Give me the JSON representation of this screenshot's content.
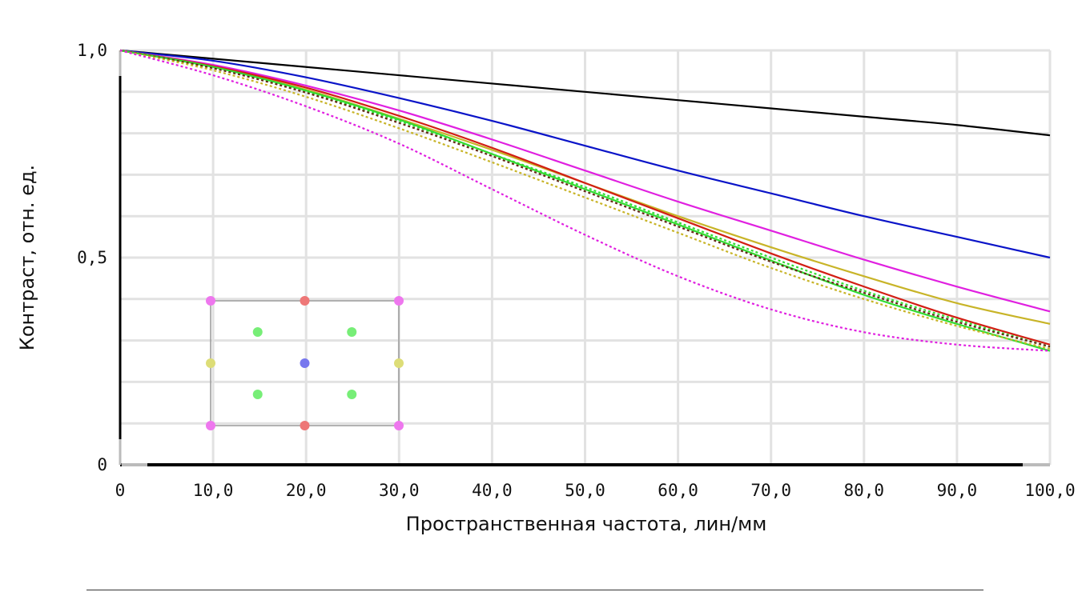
{
  "chart_data": {
    "type": "line",
    "xlabel": "Пространственная частота, лин/мм",
    "ylabel": "Контраст, отн. ед.",
    "xlim": [
      0,
      100
    ],
    "ylim": [
      0,
      1
    ],
    "x_ticks": [
      "0",
      "10,0",
      "20,0",
      "30,0",
      "40,0",
      "50,0",
      "60,0",
      "70,0",
      "80,0",
      "90,0",
      "100,0"
    ],
    "y_ticks": [
      "0",
      "0,5",
      "1,0"
    ],
    "grid": true,
    "x": [
      0,
      10,
      20,
      30,
      40,
      50,
      60,
      70,
      80,
      90,
      100
    ],
    "series": [
      {
        "color": "#000000",
        "style": "solid",
        "values": [
          1.0,
          0.98,
          0.96,
          0.94,
          0.92,
          0.9,
          0.88,
          0.86,
          0.84,
          0.82,
          0.795
        ]
      },
      {
        "color": "#0a14c8",
        "style": "solid",
        "values": [
          1.0,
          0.975,
          0.935,
          0.885,
          0.83,
          0.77,
          0.71,
          0.655,
          0.6,
          0.55,
          0.5
        ]
      },
      {
        "color": "#e020e0",
        "style": "solid",
        "values": [
          1.0,
          0.965,
          0.915,
          0.855,
          0.785,
          0.71,
          0.635,
          0.565,
          0.495,
          0.43,
          0.37
        ]
      },
      {
        "color": "#c8b428",
        "style": "solid",
        "values": [
          1.0,
          0.96,
          0.905,
          0.835,
          0.76,
          0.68,
          0.6,
          0.525,
          0.455,
          0.39,
          0.34
        ]
      },
      {
        "color": "#d21e14",
        "style": "solid",
        "values": [
          1.0,
          0.962,
          0.91,
          0.842,
          0.765,
          0.68,
          0.595,
          0.51,
          0.43,
          0.355,
          0.29
        ]
      },
      {
        "color": "#32dc32",
        "style": "solid",
        "values": [
          1.0,
          0.96,
          0.903,
          0.833,
          0.75,
          0.665,
          0.58,
          0.493,
          0.41,
          0.34,
          0.275
        ]
      },
      {
        "color": "#32dc32",
        "style": "dotted",
        "values": [
          1.0,
          0.958,
          0.9,
          0.83,
          0.75,
          0.67,
          0.585,
          0.5,
          0.42,
          0.35,
          0.285
        ]
      },
      {
        "color": "#642814",
        "style": "dotted",
        "values": [
          1.0,
          0.957,
          0.898,
          0.825,
          0.745,
          0.66,
          0.575,
          0.49,
          0.415,
          0.345,
          0.285
        ]
      },
      {
        "color": "#c8b428",
        "style": "dotted",
        "values": [
          1.0,
          0.952,
          0.888,
          0.812,
          0.73,
          0.645,
          0.56,
          0.475,
          0.4,
          0.335,
          0.28
        ]
      },
      {
        "color": "#e020e0",
        "style": "dotted",
        "values": [
          1.0,
          0.94,
          0.865,
          0.775,
          0.665,
          0.555,
          0.455,
          0.375,
          0.32,
          0.29,
          0.275
        ]
      }
    ],
    "inset": {
      "description_points": [
        {
          "gx": 0,
          "gy": 0,
          "color": "#ee77ee"
        },
        {
          "gx": 0.5,
          "gy": 0,
          "color": "#ee7777"
        },
        {
          "gx": 1,
          "gy": 0,
          "color": "#ee77ee"
        },
        {
          "gx": 0.25,
          "gy": 0.25,
          "color": "#77ee77"
        },
        {
          "gx": 0.75,
          "gy": 0.25,
          "color": "#77ee77"
        },
        {
          "gx": 0,
          "gy": 0.5,
          "color": "#dddd77"
        },
        {
          "gx": 0.5,
          "gy": 0.5,
          "color": "#7777ee"
        },
        {
          "gx": 1,
          "gy": 0.5,
          "color": "#dddd77"
        },
        {
          "gx": 0.25,
          "gy": 0.75,
          "color": "#77ee77"
        },
        {
          "gx": 0.75,
          "gy": 0.75,
          "color": "#77ee77"
        },
        {
          "gx": 0,
          "gy": 1,
          "color": "#ee77ee"
        },
        {
          "gx": 0.5,
          "gy": 1,
          "color": "#ee7777"
        },
        {
          "gx": 1,
          "gy": 1,
          "color": "#ee77ee"
        }
      ]
    }
  }
}
